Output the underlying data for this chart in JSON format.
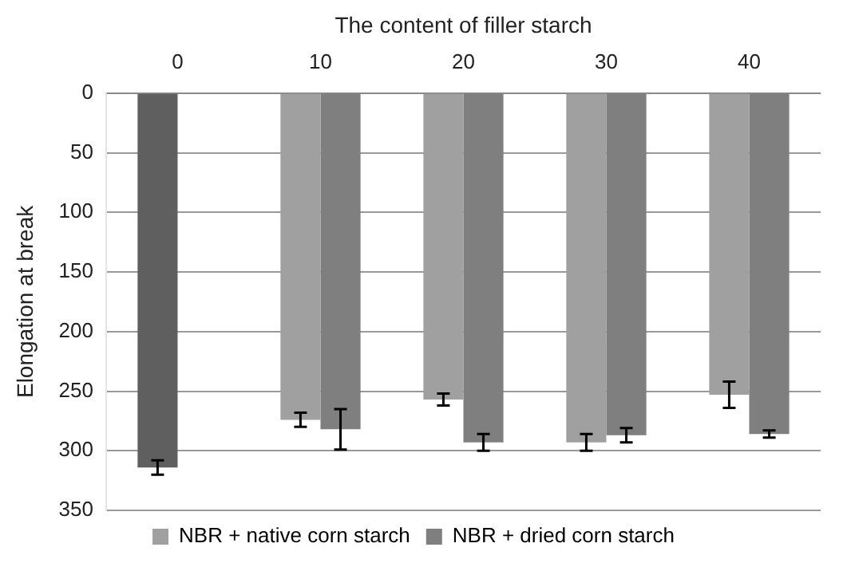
{
  "chart_data": {
    "type": "bar",
    "xlabel": "The content of filler starch",
    "ylabel": "Elongation at break",
    "categories": [
      "0",
      "10",
      "20",
      "30",
      "40"
    ],
    "series": [
      {
        "name": "NBR + native corn starch",
        "color": "#a0a0a0",
        "colors": [
          "#5f5f5f",
          "#a0a0a0",
          "#a0a0a0",
          "#a0a0a0",
          "#a0a0a0"
        ],
        "values": [
          314,
          274,
          257,
          293,
          253
        ],
        "errors": [
          6,
          6,
          5,
          7,
          11
        ]
      },
      {
        "name": "NBR + dried corn starch",
        "color": "#7f7f7f",
        "values": [
          null,
          282,
          293,
          287,
          286
        ],
        "errors": [
          null,
          17,
          7,
          6,
          3
        ]
      }
    ],
    "ylim": [
      350,
      0
    ],
    "yticks": [
      0,
      50,
      100,
      150,
      200,
      250,
      300,
      350
    ],
    "grid": "y",
    "legend": "bottom"
  }
}
